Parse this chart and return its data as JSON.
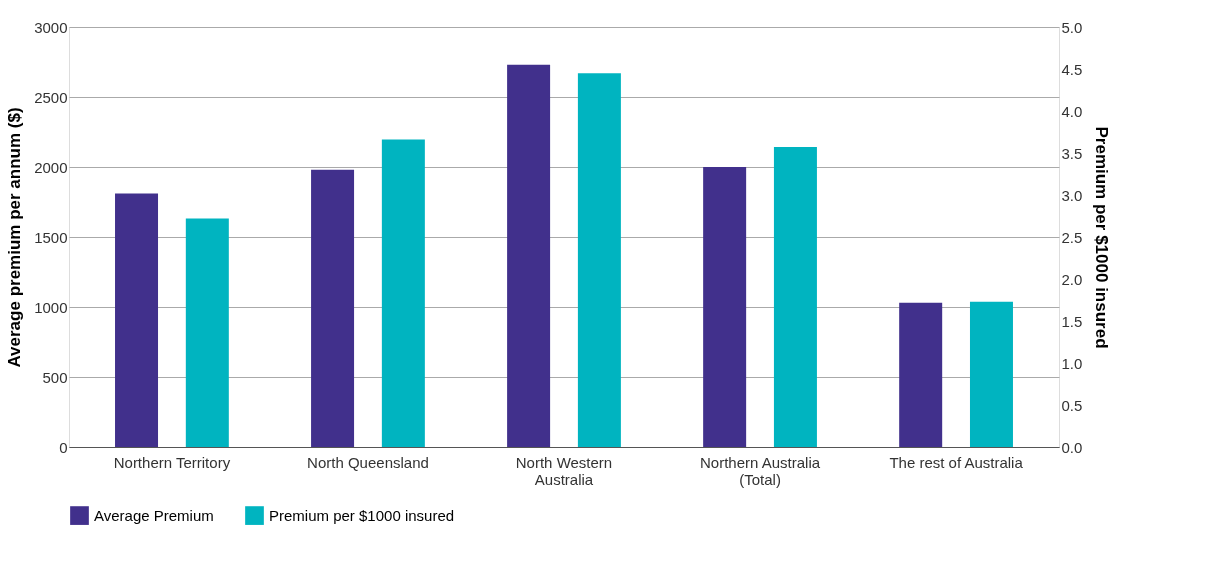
{
  "chart_data": {
    "type": "bar",
    "categories": [
      "Northern Territory",
      "North Queensland",
      "North Western Australia",
      "Northern Australia (Total)",
      "The rest of Australia"
    ],
    "ylabel": "Average premium per annum ($)",
    "y2label": "Premium per $1000 insured",
    "ylim": [
      0,
      3000
    ],
    "yticks": [
      0,
      500,
      1000,
      1500,
      2000,
      2500,
      3000
    ],
    "y2lim": [
      0,
      5
    ],
    "y2ticks": [
      {
        "value": 0,
        "label": "0.0"
      },
      {
        "value": 0.5,
        "label": "0.5"
      },
      {
        "value": 1,
        "label": "1.0"
      },
      {
        "value": 1.5,
        "label": "1.5"
      },
      {
        "value": 2,
        "label": "2.0"
      },
      {
        "value": 2.5,
        "label": "2.5"
      },
      {
        "value": 3,
        "label": "3.0"
      },
      {
        "value": 3.5,
        "label": "3.5"
      },
      {
        "value": 4,
        "label": "4.0"
      },
      {
        "value": 4.5,
        "label": "4.5"
      },
      {
        "value": 5,
        "label": "5.0"
      }
    ],
    "series": [
      {
        "name": "Average Premium",
        "color": "#41308c",
        "values": [
          1810,
          1980,
          2730,
          2000,
          1030
        ]
      },
      {
        "name": "Premium per $1000 insured",
        "color": "#00b4c0",
        "axis": "y2",
        "values": [
          2.72,
          3.66,
          4.45,
          3.57,
          1.73
        ]
      }
    ],
    "grid": "y",
    "legend": "bottom"
  }
}
